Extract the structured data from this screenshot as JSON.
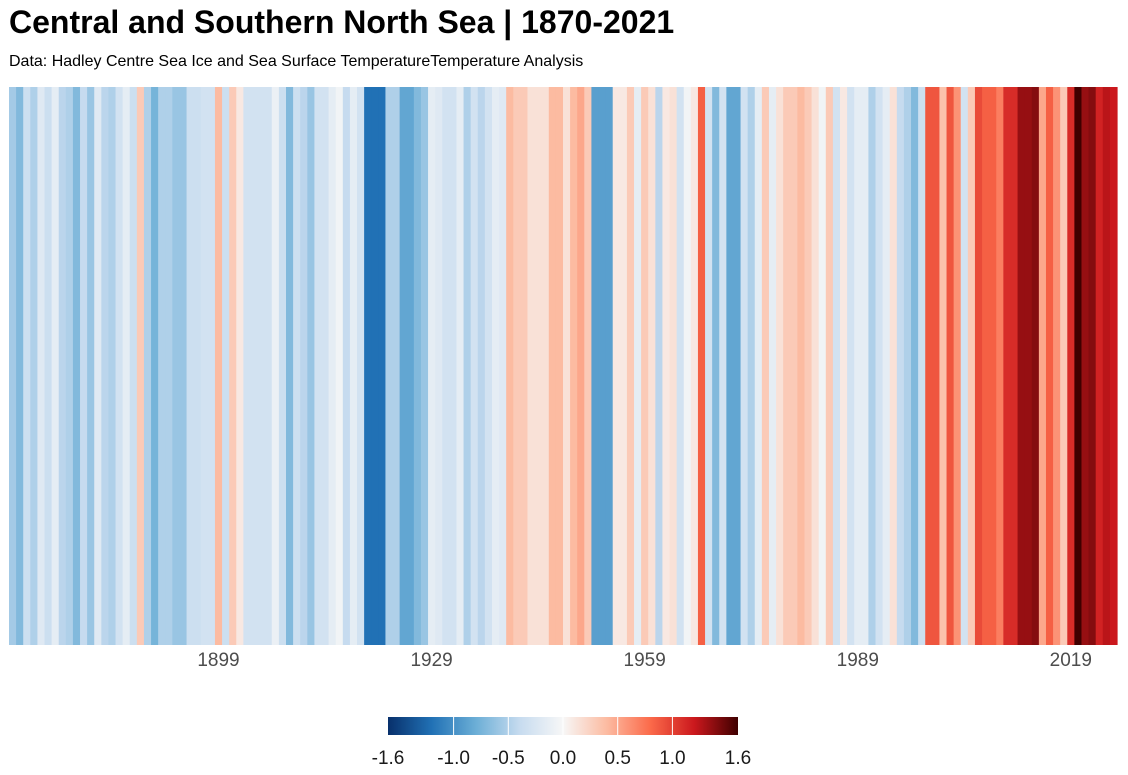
{
  "chart_data": {
    "type": "heatmap",
    "title": "Central and Southern North Sea | 1870-2021",
    "subtitle": "Data: Hadley Centre Sea Ice and Sea Surface TemperatureTemperature Analysis",
    "x_start": 1870,
    "x_end": 2021,
    "x_ticks": [
      1899,
      1929,
      1959,
      1989,
      2019
    ],
    "x_tick_labels": [
      "1899",
      "1929",
      "1959",
      "1989",
      "2019"
    ],
    "values": [
      -0.55,
      -0.7,
      -0.35,
      -0.5,
      -0.2,
      -0.35,
      -0.15,
      -0.45,
      -0.5,
      -0.7,
      -0.4,
      -0.6,
      -0.2,
      -0.45,
      -0.5,
      -0.3,
      -0.15,
      -0.35,
      0.3,
      -0.5,
      -0.75,
      -0.5,
      -0.5,
      -0.6,
      -0.6,
      -0.35,
      -0.35,
      -0.3,
      -0.3,
      0.4,
      -0.35,
      0.3,
      0.1,
      -0.3,
      -0.3,
      -0.3,
      -0.3,
      -0.1,
      -0.35,
      -0.7,
      -0.35,
      -0.45,
      -0.6,
      -0.3,
      -0.3,
      -0.15,
      -0.05,
      -0.4,
      -0.15,
      -0.3,
      -1.2,
      -1.2,
      -1.2,
      -0.5,
      -0.5,
      -0.85,
      -0.85,
      -0.7,
      -0.6,
      -0.15,
      -0.2,
      -0.3,
      -0.3,
      -0.15,
      -0.5,
      -0.3,
      -0.45,
      -0.3,
      -0.15,
      -0.2,
      0.4,
      0.3,
      0.3,
      0.15,
      0.15,
      0.15,
      0.4,
      0.4,
      0.15,
      0.4,
      0.5,
      0.3,
      -0.9,
      -0.9,
      -0.9,
      0.1,
      0.1,
      0.3,
      -0.15,
      0.3,
      0.15,
      -0.45,
      0.1,
      0.15,
      -0.3,
      -0.05,
      0.1,
      0.85,
      -0.3,
      -0.7,
      -0.3,
      -0.85,
      -0.85,
      -0.3,
      -0.5,
      -0.15,
      0.3,
      -0.15,
      0.15,
      0.3,
      0.3,
      0.4,
      0.3,
      0.15,
      -0.05,
      0.3,
      -0.3,
      0.1,
      -0.3,
      -0.15,
      -0.15,
      -0.5,
      -0.3,
      -0.15,
      0.15,
      -0.4,
      -0.5,
      -0.7,
      -0.35,
      0.9,
      0.9,
      0.35,
      0.9,
      0.6,
      -0.3,
      0.3,
      0.95,
      0.85,
      0.85,
      0.7,
      1.1,
      1.1,
      1.35,
      1.35,
      1.4,
      0.5,
      0.85,
      0.6,
      0.3,
      1.1,
      1.65,
      1.35,
      1.4,
      1.15,
      1.25,
      1.2
    ],
    "color_scale": {
      "min": -1.6,
      "max": 1.6,
      "stops": [
        [
          -1.6,
          "#08306b"
        ],
        [
          -1.2,
          "#2171b5"
        ],
        [
          -0.8,
          "#6baed6"
        ],
        [
          -0.4,
          "#c6dbef"
        ],
        [
          0.0,
          "#f7f7f7"
        ],
        [
          0.4,
          "#fcbba1"
        ],
        [
          0.8,
          "#fb6a4a"
        ],
        [
          1.2,
          "#cb181d"
        ],
        [
          1.6,
          "#3f0000"
        ]
      ]
    },
    "legend": {
      "placement": "bottom-center",
      "tick_labels": [
        "-1.6",
        "-1.0",
        "-0.5",
        "0.0",
        "0.5",
        "1.0",
        "1.6"
      ],
      "tick_values": [
        -1.6,
        -1.0,
        -0.5,
        0.0,
        0.5,
        1.0,
        1.6
      ]
    },
    "grid": false
  }
}
